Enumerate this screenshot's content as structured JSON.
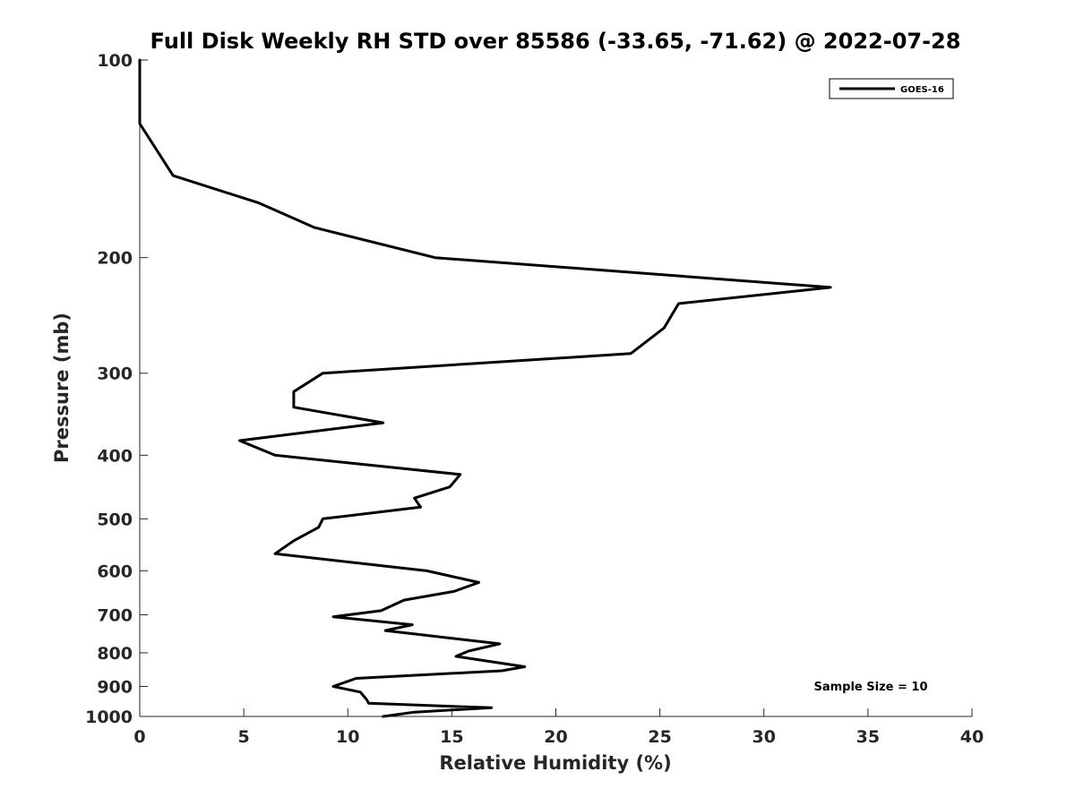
{
  "chart_data": {
    "type": "line",
    "title": "Full Disk Weekly RH STD over 85586 (-33.65, -71.62) @ 2022-07-28",
    "xlabel": "Relative Humidity (%)",
    "ylabel": "Pressure (mb)",
    "xlim": [
      0,
      40
    ],
    "ylim": [
      100,
      1000
    ],
    "y_scale": "log",
    "y_reversed": true,
    "grid": false,
    "legend_position": "top-right",
    "x_ticks": [
      0,
      5,
      10,
      15,
      20,
      25,
      30,
      35,
      40
    ],
    "y_ticks": [
      100,
      200,
      300,
      400,
      500,
      600,
      700,
      800,
      900,
      1000
    ],
    "annotation": "Sample Size = 10",
    "series": [
      {
        "name": "GOES-16",
        "color": "#000000",
        "x": [
          0,
          0,
          1.6,
          5.7,
          8.4,
          14.2,
          33.2,
          25.9,
          25.2,
          23.6,
          8.8,
          7.4,
          7.4,
          11.7,
          4.8,
          6.5,
          15.4,
          14.9,
          13.2,
          13.5,
          8.8,
          8.6,
          7.4,
          6.5,
          13.8,
          16.3,
          15.1,
          12.7,
          11.6,
          9.3,
          13.1,
          11.8,
          17.3,
          15.8,
          15.2,
          18.5,
          17.4,
          10.4,
          9.3,
          10.6,
          10.9,
          11.0,
          16.9,
          13.2,
          11.7
        ],
        "y": [
          100,
          125,
          150,
          165,
          180,
          200,
          222,
          235,
          256,
          280,
          300,
          320,
          338,
          357,
          380,
          400,
          428,
          447,
          465,
          480,
          500,
          515,
          540,
          565,
          600,
          625,
          645,
          665,
          690,
          705,
          725,
          740,
          775,
          795,
          810,
          840,
          852,
          875,
          900,
          918,
          942,
          955,
          970,
          985,
          1000
        ]
      }
    ]
  }
}
